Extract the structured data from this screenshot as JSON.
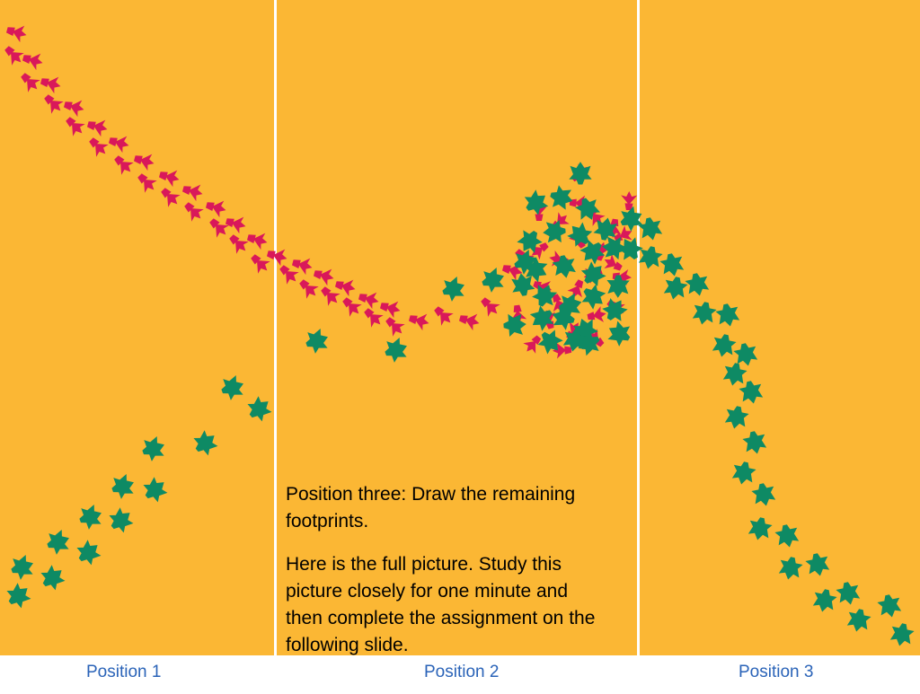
{
  "colors": {
    "background": "#FBB734",
    "divider": "#FFFFFF",
    "red_tracks": "#D9185A",
    "green_tracks": "#0E8A64",
    "label_text": "#2A63B8"
  },
  "panels": [
    {
      "label": "Position 1"
    },
    {
      "label": "Position 2"
    },
    {
      "label": "Position 3"
    }
  ],
  "caption": {
    "line1": "Position three:  Draw the remaining footprints.",
    "line2": "Here is the full picture.  Study this picture closely for one minute and then complete the assignment on the following slide."
  },
  "icons": {
    "red_track": "bird-footprint-icon",
    "green_track": "webbed-footprint-icon"
  }
}
